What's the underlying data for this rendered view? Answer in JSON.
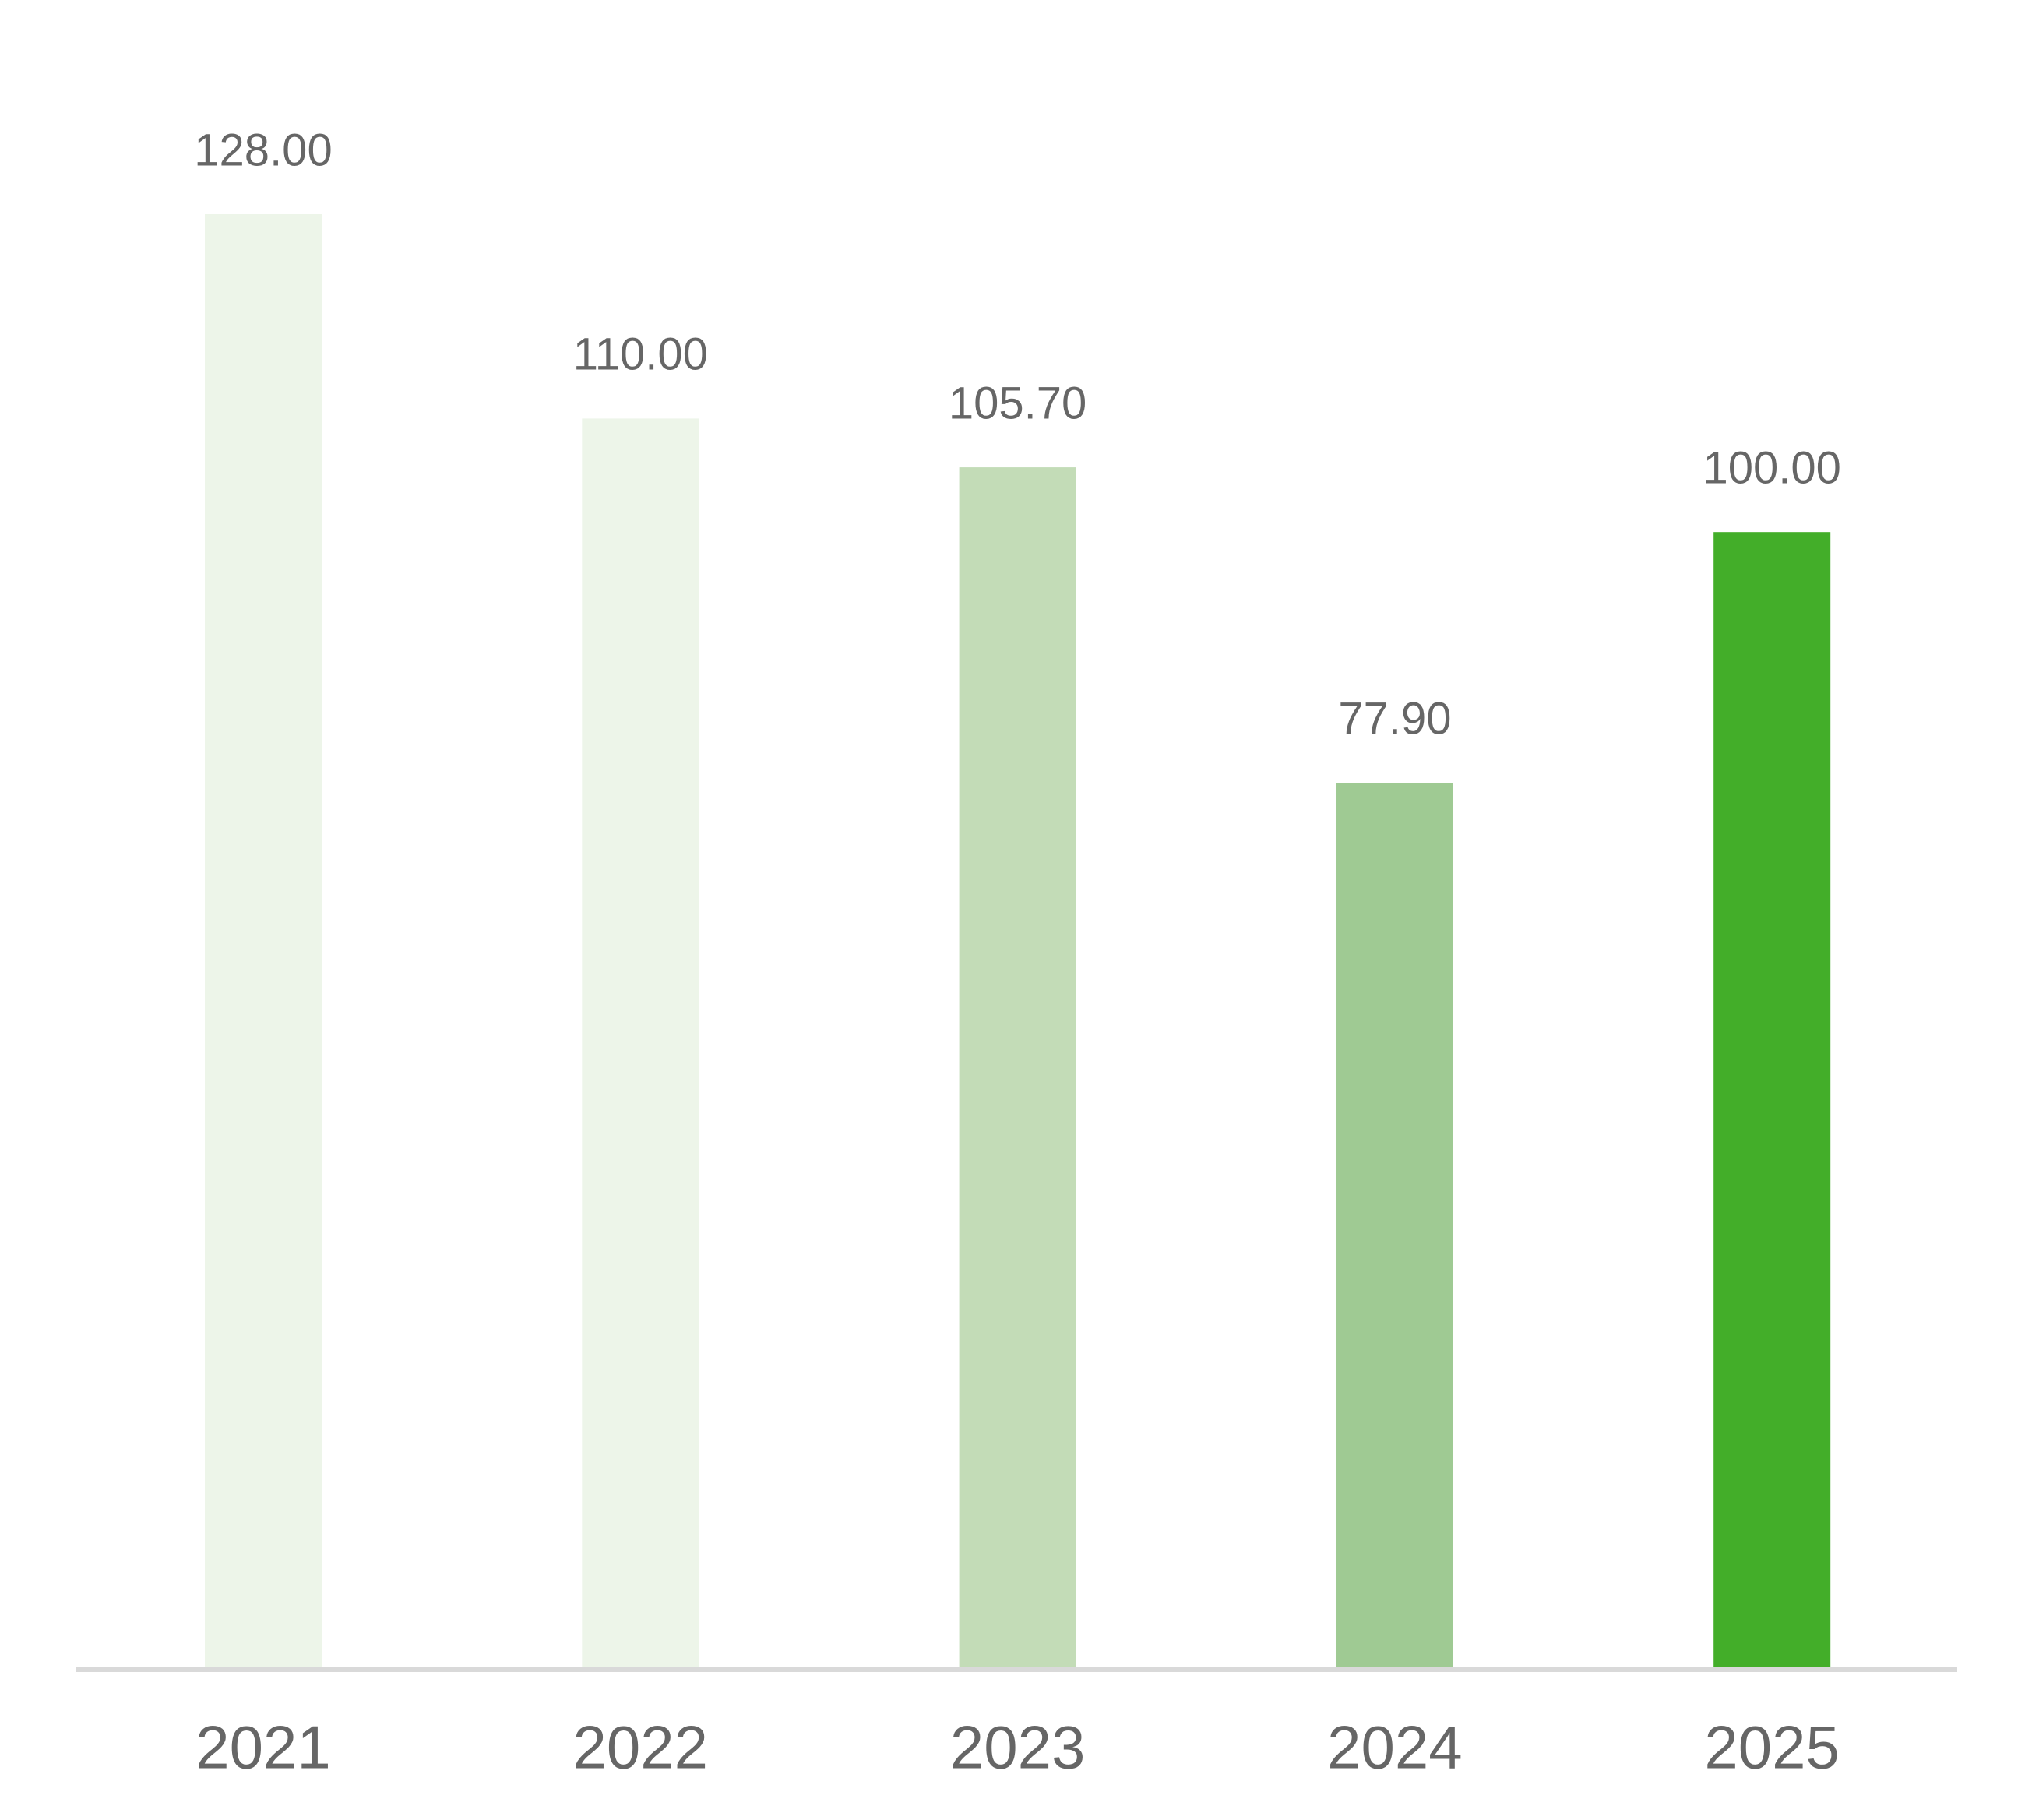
{
  "chart_data": {
    "type": "bar",
    "categories": [
      "2021",
      "2022",
      "2023",
      "2024",
      "2025"
    ],
    "values": [
      128,
      110,
      105.7,
      77.9,
      100
    ],
    "value_labels": [
      "128.00",
      "110.00",
      "105.70",
      "77.90",
      "100.00"
    ],
    "colors": [
      "#edf5e9",
      "#edf5e9",
      "#c3dcb7",
      "#9fca93",
      "#43ae29"
    ]
  }
}
